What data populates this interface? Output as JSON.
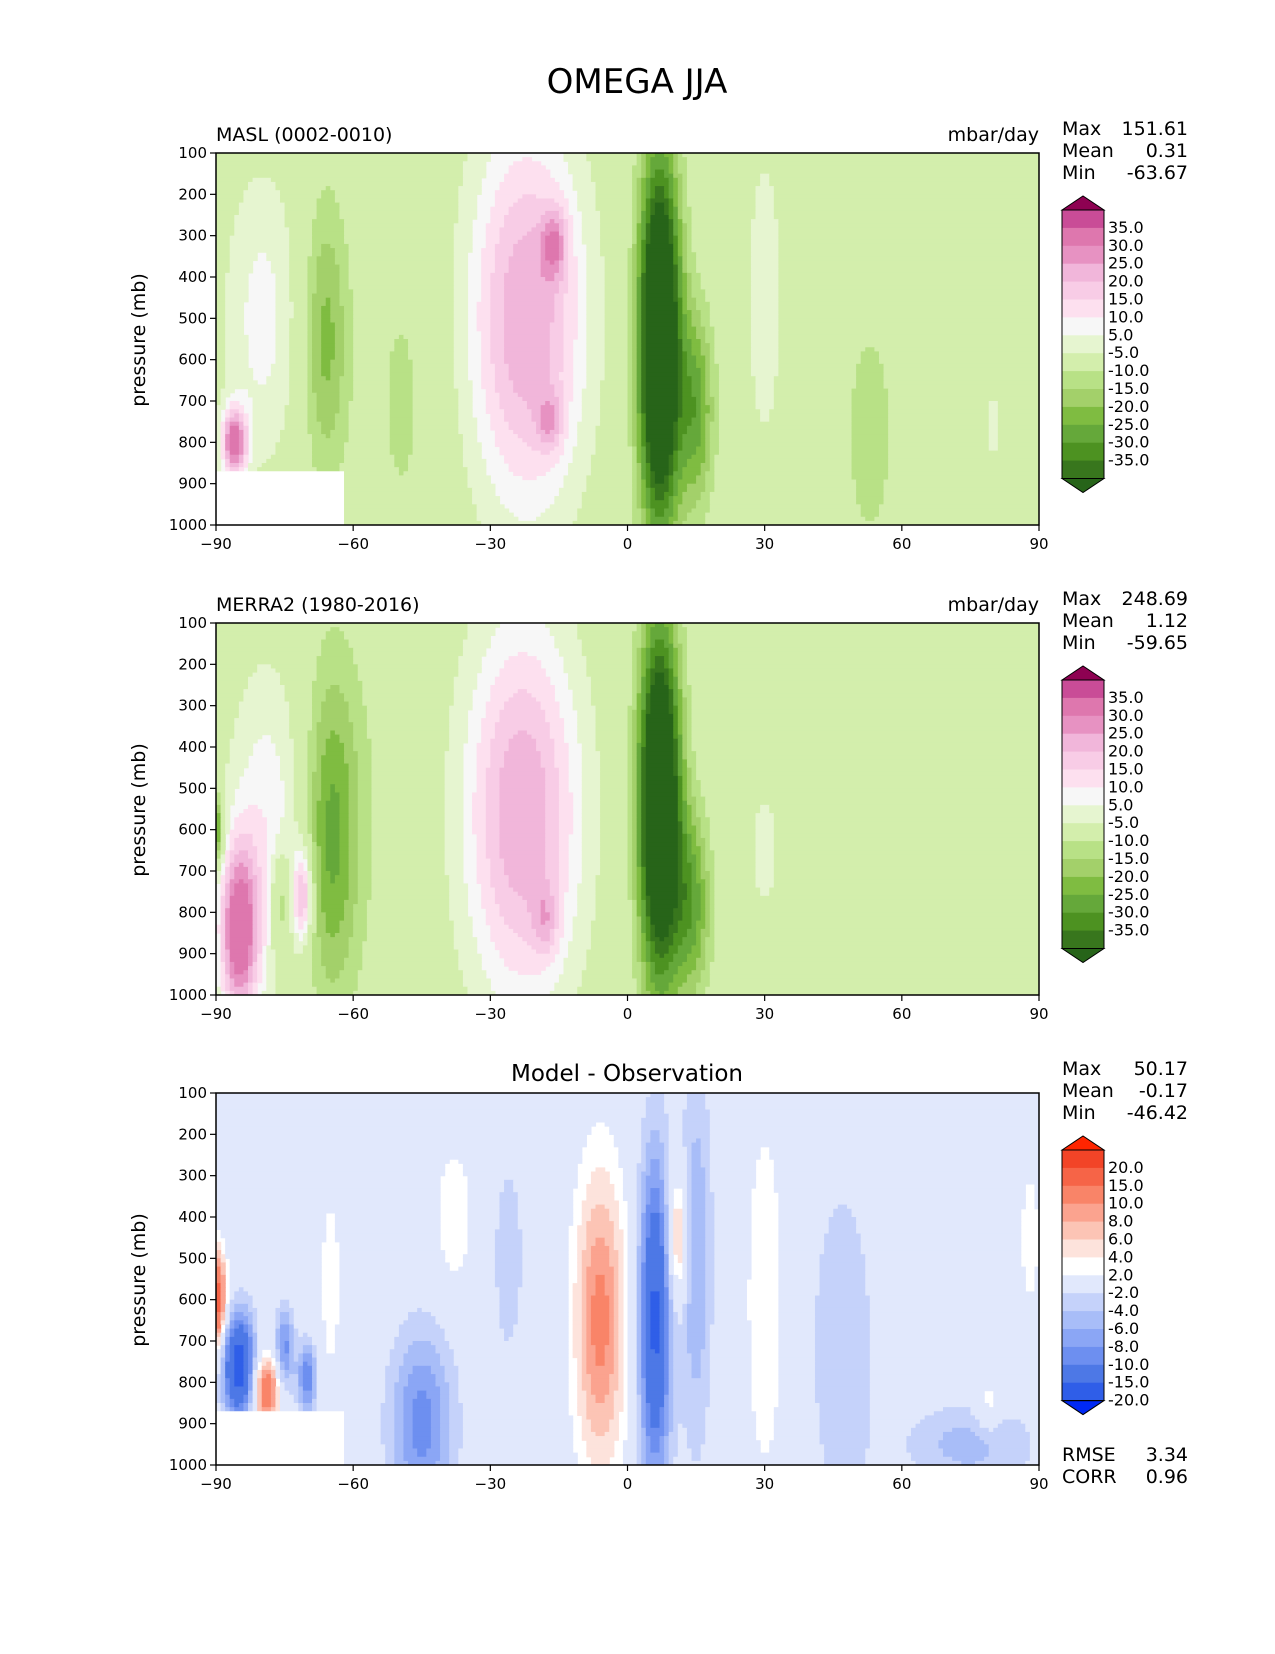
{
  "figure": {
    "title": "OMEGA JJA"
  },
  "colors": {
    "background": "#f7f7f7",
    "diff_background": "#ffffff",
    "pink_green": [
      "#276419",
      "#38761d",
      "#4d9221",
      "#65a83a",
      "#7fbc41",
      "#a3d06a",
      "#b8e186",
      "#d3eeac",
      "#e6f5d0",
      "#f7f7f7",
      "#fde0ef",
      "#f8cce6",
      "#f1b6da",
      "#e792c2",
      "#de77ae",
      "#c94c97",
      "#8e0152"
    ],
    "red_blue": [
      "#0029f5",
      "#2f5ee8",
      "#4d78e6",
      "#6d8ff0",
      "#8ba6f5",
      "#a8bdf8",
      "#c5d2fa",
      "#e1e8fc",
      "#ffffff",
      "#fde3dc",
      "#fcc4b5",
      "#fba38f",
      "#f98468",
      "#f66447",
      "#f24427",
      "#ff2500"
    ]
  },
  "chart_data": [
    {
      "type": "heatmap",
      "id": "model",
      "title_left": "MASL (0002-0010)",
      "title_right": "mbar/day",
      "ylabel": "pressure (mb)",
      "xlabel": "",
      "xlim": [
        -90,
        90
      ],
      "ylim": [
        1000,
        100
      ],
      "xticks": [
        "−90",
        "−60",
        "−30",
        "0",
        "30",
        "60",
        "90"
      ],
      "yticks": [
        "100",
        "200",
        "300",
        "400",
        "500",
        "600",
        "700",
        "800",
        "900",
        "1000"
      ],
      "stats": {
        "max": "151.61",
        "mean": "0.31",
        "min": "-63.67"
      },
      "stat_labels": {
        "max": "Max",
        "mean": "Mean",
        "min": "Min"
      },
      "colorbar": {
        "palette": "pink_green",
        "levels": [
          "35.0",
          "30.0",
          "25.0",
          "20.0",
          "15.0",
          "10.0",
          "5.0",
          "-5.0",
          "-10.0",
          "-15.0",
          "-20.0",
          "-25.0",
          "-30.0",
          "-35.0"
        ]
      },
      "features": [
        {
          "lat": -80,
          "p": 500,
          "sx": 6,
          "sy": 260,
          "v": 12
        },
        {
          "lat": -86,
          "p": 800,
          "sx": 2,
          "sy": 60,
          "v": 38
        },
        {
          "lat": -66,
          "p": 550,
          "sx": 3.5,
          "sy": 240,
          "v": -17
        },
        {
          "lat": -49,
          "p": 700,
          "sx": 6,
          "sy": 320,
          "v": -6
        },
        {
          "lat": -22,
          "p": 500,
          "sx": 9,
          "sy": 330,
          "v": 30
        },
        {
          "lat": -16,
          "p": 320,
          "sx": 2,
          "sy": 60,
          "v": 18
        },
        {
          "lat": -17,
          "p": 750,
          "sx": 2,
          "sy": 50,
          "v": 14
        },
        {
          "lat": 7,
          "p": 560,
          "sx": 3.2,
          "sy": 310,
          "v": -64
        },
        {
          "lat": 15,
          "p": 720,
          "sx": 2.8,
          "sy": 170,
          "v": -22
        },
        {
          "lat": 30,
          "p": 450,
          "sx": 3,
          "sy": 280,
          "v": 9
        },
        {
          "lat": 53,
          "p": 780,
          "sx": 5,
          "sy": 260,
          "v": -7
        },
        {
          "lat": 80,
          "p": 760,
          "sx": 1.5,
          "sy": 80,
          "v": 7
        }
      ]
    },
    {
      "type": "heatmap",
      "id": "obs",
      "title_left": "MERRA2 (1980-2016)",
      "title_right": "mbar/day",
      "ylabel": "pressure (mb)",
      "xlabel": "",
      "xlim": [
        -90,
        90
      ],
      "ylim": [
        1000,
        100
      ],
      "xticks": [
        "−90",
        "−60",
        "−30",
        "0",
        "30",
        "60",
        "90"
      ],
      "yticks": [
        "100",
        "200",
        "300",
        "400",
        "500",
        "600",
        "700",
        "800",
        "900",
        "1000"
      ],
      "stats": {
        "max": "248.69",
        "mean": "1.12",
        "min": "-59.65"
      },
      "stat_labels": {
        "max": "Max",
        "mean": "Mean",
        "min": "Min"
      },
      "colorbar": {
        "palette": "pink_green",
        "levels": [
          "35.0",
          "30.0",
          "25.0",
          "20.0",
          "15.0",
          "10.0",
          "5.0",
          "-5.0",
          "-10.0",
          "-15.0",
          "-20.0",
          "-25.0",
          "-30.0",
          "-35.0"
        ]
      },
      "features": [
        {
          "lat": -79,
          "p": 600,
          "sx": 6,
          "sy": 280,
          "v": 14
        },
        {
          "lat": -85,
          "p": 850,
          "sx": 3,
          "sy": 150,
          "v": 40
        },
        {
          "lat": -76,
          "p": 780,
          "sx": 1.5,
          "sy": 90,
          "v": -16
        },
        {
          "lat": -71,
          "p": 760,
          "sx": 1.5,
          "sy": 80,
          "v": 26
        },
        {
          "lat": -90,
          "p": 600,
          "sx": 1.2,
          "sy": 60,
          "v": -28
        },
        {
          "lat": -65,
          "p": 620,
          "sx": 4,
          "sy": 280,
          "v": -19
        },
        {
          "lat": -60,
          "p": 550,
          "sx": 6,
          "sy": 320,
          "v": -5
        },
        {
          "lat": -23,
          "p": 560,
          "sx": 9,
          "sy": 330,
          "v": 30
        },
        {
          "lat": -18,
          "p": 820,
          "sx": 2,
          "sy": 60,
          "v": 12
        },
        {
          "lat": 7,
          "p": 540,
          "sx": 3.2,
          "sy": 300,
          "v": -62
        },
        {
          "lat": 14,
          "p": 780,
          "sx": 3,
          "sy": 160,
          "v": -22
        },
        {
          "lat": 30,
          "p": 650,
          "sx": 4,
          "sy": 180,
          "v": 6
        },
        {
          "lat": 64,
          "p": 800,
          "sx": 3,
          "sy": 100,
          "v": -5
        }
      ]
    },
    {
      "type": "heatmap",
      "id": "diff",
      "title": "Model - Observation",
      "ylabel": "pressure (mb)",
      "xlabel": "",
      "xlim": [
        -90,
        90
      ],
      "ylim": [
        1000,
        100
      ],
      "xticks": [
        "−90",
        "−60",
        "−30",
        "0",
        "30",
        "60",
        "90"
      ],
      "yticks": [
        "100",
        "200",
        "300",
        "400",
        "500",
        "600",
        "700",
        "800",
        "900",
        "1000"
      ],
      "stats": {
        "max": "50.17",
        "mean": "-0.17",
        "min": "-46.42"
      },
      "stat_labels": {
        "max": "Max",
        "mean": "Mean",
        "min": "Min"
      },
      "extra_stats": {
        "rmse": "3.34",
        "corr": "0.96"
      },
      "extra_labels": {
        "rmse": "RMSE",
        "corr": "CORR"
      },
      "colorbar": {
        "palette": "red_blue",
        "levels": [
          "20.0",
          "15.0",
          "10.0",
          "8.0",
          "6.0",
          "4.0",
          "2.0",
          "-2.0",
          "-4.0",
          "-6.0",
          "-8.0",
          "-10.0",
          "-15.0",
          "-20.0"
        ]
      },
      "features": [
        {
          "lat": -90,
          "p": 600,
          "sx": 1.5,
          "sy": 80,
          "v": 18
        },
        {
          "lat": -85,
          "p": 760,
          "sx": 2.5,
          "sy": 90,
          "v": -18
        },
        {
          "lat": -79,
          "p": 820,
          "sx": 2,
          "sy": 60,
          "v": 14
        },
        {
          "lat": -75,
          "p": 720,
          "sx": 1.5,
          "sy": 70,
          "v": -9
        },
        {
          "lat": -70,
          "p": 790,
          "sx": 1.5,
          "sy": 60,
          "v": -10
        },
        {
          "lat": -65,
          "p": 560,
          "sx": 2,
          "sy": 200,
          "v": 3
        },
        {
          "lat": -45,
          "p": 900,
          "sx": 5,
          "sy": 160,
          "v": -9
        },
        {
          "lat": -38,
          "p": 400,
          "sx": 3,
          "sy": 120,
          "v": 4
        },
        {
          "lat": -26,
          "p": 500,
          "sx": 3,
          "sy": 220,
          "v": -3
        },
        {
          "lat": -6,
          "p": 650,
          "sx": 4,
          "sy": 260,
          "v": 11
        },
        {
          "lat": 6,
          "p": 650,
          "sx": 2.5,
          "sy": 280,
          "v": -16
        },
        {
          "lat": 11,
          "p": 450,
          "sx": 1.6,
          "sy": 110,
          "v": 9
        },
        {
          "lat": 15,
          "p": 500,
          "sx": 2.5,
          "sy": 330,
          "v": -6
        },
        {
          "lat": 30,
          "p": 600,
          "sx": 3,
          "sy": 320,
          "v": 4
        },
        {
          "lat": 47,
          "p": 720,
          "sx": 5,
          "sy": 300,
          "v": -4
        },
        {
          "lat": 75,
          "p": 950,
          "sx": 10,
          "sy": 70,
          "v": -5
        },
        {
          "lat": 79,
          "p": 860,
          "sx": 2,
          "sy": 50,
          "v": 4
        },
        {
          "lat": 88,
          "p": 450,
          "sx": 2,
          "sy": 150,
          "v": 3
        }
      ]
    }
  ]
}
